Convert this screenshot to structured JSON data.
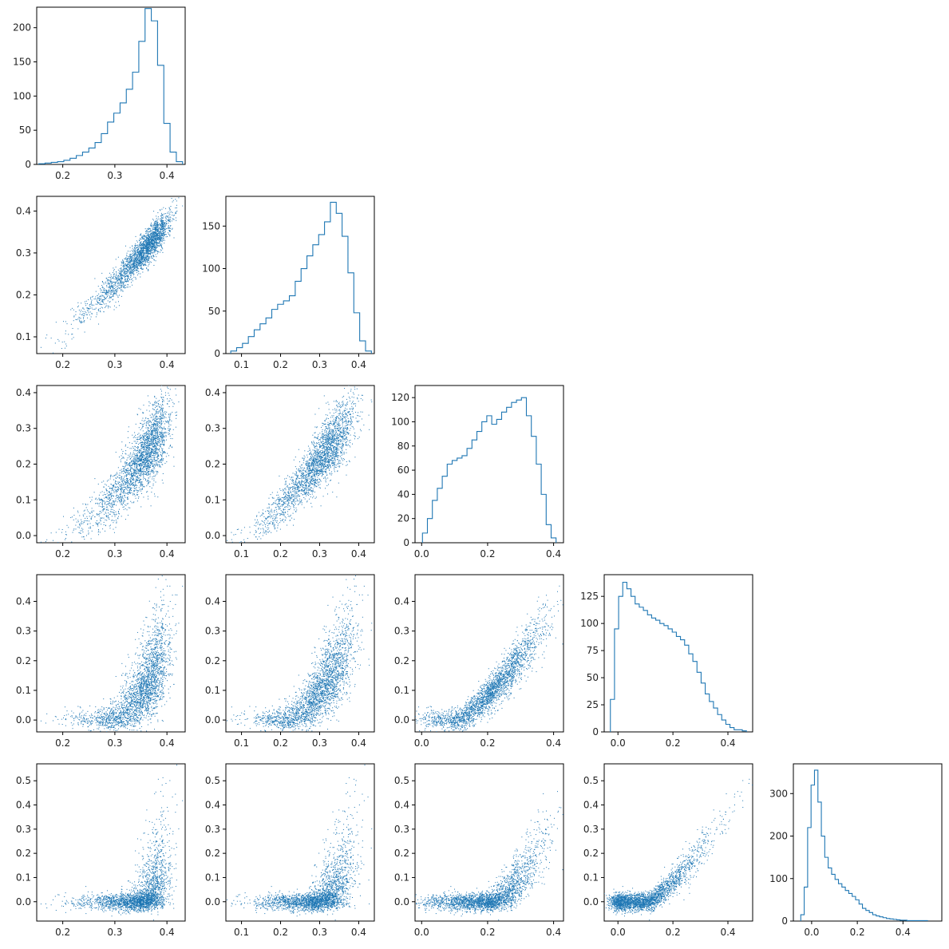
{
  "chart_data": {
    "type": "corner",
    "color": "#1f77b4",
    "background": "#ffffff",
    "grid": false,
    "legend": "none",
    "n_samples": 5000,
    "dimensions": 5,
    "marginals": [
      {
        "type": "histogram",
        "xlim": [
          0.15,
          0.435
        ],
        "ylim": [
          0,
          230
        ],
        "xticks": [
          0.2,
          0.3,
          0.4
        ],
        "xtick_labels": [
          "0.2",
          "0.3",
          "0.4"
        ],
        "yticks": [
          0,
          50,
          100,
          150,
          200
        ],
        "ytick_labels": [
          "0",
          "50",
          "100",
          "150",
          "200"
        ],
        "bins": [
          [
            0.16,
            1
          ],
          [
            0.172,
            2
          ],
          [
            0.184,
            3
          ],
          [
            0.196,
            4
          ],
          [
            0.208,
            6
          ],
          [
            0.22,
            9
          ],
          [
            0.232,
            13
          ],
          [
            0.244,
            18
          ],
          [
            0.256,
            24
          ],
          [
            0.268,
            32
          ],
          [
            0.28,
            45
          ],
          [
            0.292,
            62
          ],
          [
            0.304,
            75
          ],
          [
            0.316,
            90
          ],
          [
            0.328,
            110
          ],
          [
            0.34,
            135
          ],
          [
            0.352,
            180
          ],
          [
            0.364,
            228
          ],
          [
            0.376,
            210
          ],
          [
            0.388,
            145
          ],
          [
            0.4,
            60
          ],
          [
            0.412,
            18
          ],
          [
            0.424,
            4
          ]
        ]
      },
      {
        "type": "histogram",
        "xlim": [
          0.06,
          0.44
        ],
        "ylim": [
          0,
          185
        ],
        "xticks": [
          0.1,
          0.2,
          0.3,
          0.4
        ],
        "xtick_labels": [
          "0.1",
          "0.2",
          "0.3",
          "0.4"
        ],
        "yticks": [
          0,
          50,
          100,
          150
        ],
        "ytick_labels": [
          "0",
          "50",
          "100",
          "150"
        ],
        "bins": [
          [
            0.08,
            3
          ],
          [
            0.095,
            7
          ],
          [
            0.11,
            12
          ],
          [
            0.125,
            20
          ],
          [
            0.14,
            28
          ],
          [
            0.155,
            35
          ],
          [
            0.17,
            42
          ],
          [
            0.185,
            52
          ],
          [
            0.2,
            58
          ],
          [
            0.215,
            62
          ],
          [
            0.23,
            68
          ],
          [
            0.245,
            85
          ],
          [
            0.26,
            100
          ],
          [
            0.275,
            115
          ],
          [
            0.29,
            128
          ],
          [
            0.305,
            140
          ],
          [
            0.32,
            155
          ],
          [
            0.335,
            178
          ],
          [
            0.35,
            165
          ],
          [
            0.365,
            138
          ],
          [
            0.38,
            95
          ],
          [
            0.395,
            48
          ],
          [
            0.41,
            15
          ],
          [
            0.425,
            3
          ]
        ]
      },
      {
        "type": "histogram",
        "xlim": [
          -0.02,
          0.43
        ],
        "ylim": [
          0,
          130
        ],
        "xticks": [
          0.0,
          0.2,
          0.4
        ],
        "xtick_labels": [
          "0.0",
          "0.2",
          "0.4"
        ],
        "yticks": [
          0,
          20,
          40,
          60,
          80,
          100,
          120
        ],
        "ytick_labels": [
          "0",
          "20",
          "40",
          "60",
          "80",
          "100",
          "120"
        ],
        "bins": [
          [
            0.01,
            8
          ],
          [
            0.025,
            20
          ],
          [
            0.04,
            35
          ],
          [
            0.055,
            45
          ],
          [
            0.07,
            55
          ],
          [
            0.085,
            65
          ],
          [
            0.1,
            68
          ],
          [
            0.115,
            70
          ],
          [
            0.13,
            72
          ],
          [
            0.145,
            78
          ],
          [
            0.16,
            85
          ],
          [
            0.175,
            92
          ],
          [
            0.19,
            100
          ],
          [
            0.205,
            105
          ],
          [
            0.22,
            98
          ],
          [
            0.235,
            102
          ],
          [
            0.25,
            108
          ],
          [
            0.265,
            112
          ],
          [
            0.28,
            116
          ],
          [
            0.295,
            118
          ],
          [
            0.31,
            120
          ],
          [
            0.325,
            105
          ],
          [
            0.34,
            88
          ],
          [
            0.355,
            65
          ],
          [
            0.37,
            40
          ],
          [
            0.385,
            15
          ],
          [
            0.4,
            4
          ]
        ]
      },
      {
        "type": "histogram",
        "xlim": [
          -0.05,
          0.49
        ],
        "ylim": [
          0,
          145
        ],
        "xticks": [
          0.0,
          0.2,
          0.4
        ],
        "xtick_labels": [
          "0.0",
          "0.2",
          "0.4"
        ],
        "yticks": [
          0,
          25,
          50,
          75,
          100,
          125
        ],
        "ytick_labels": [
          "0",
          "25",
          "50",
          "75",
          "100",
          "125"
        ],
        "bins": [
          [
            -0.02,
            30
          ],
          [
            -0.005,
            95
          ],
          [
            0.01,
            125
          ],
          [
            0.025,
            138
          ],
          [
            0.04,
            132
          ],
          [
            0.055,
            125
          ],
          [
            0.07,
            118
          ],
          [
            0.085,
            115
          ],
          [
            0.1,
            112
          ],
          [
            0.115,
            108
          ],
          [
            0.13,
            105
          ],
          [
            0.145,
            103
          ],
          [
            0.16,
            100
          ],
          [
            0.175,
            98
          ],
          [
            0.19,
            95
          ],
          [
            0.205,
            92
          ],
          [
            0.22,
            88
          ],
          [
            0.235,
            85
          ],
          [
            0.25,
            80
          ],
          [
            0.265,
            72
          ],
          [
            0.28,
            65
          ],
          [
            0.295,
            55
          ],
          [
            0.31,
            45
          ],
          [
            0.325,
            35
          ],
          [
            0.34,
            28
          ],
          [
            0.355,
            22
          ],
          [
            0.37,
            16
          ],
          [
            0.385,
            11
          ],
          [
            0.4,
            7
          ],
          [
            0.415,
            4
          ],
          [
            0.43,
            2
          ],
          [
            0.445,
            2
          ],
          [
            0.46,
            1
          ]
        ]
      },
      {
        "type": "histogram",
        "xlim": [
          -0.08,
          0.57
        ],
        "ylim": [
          0,
          370
        ],
        "xticks": [
          0.0,
          0.2,
          0.4
        ],
        "xtick_labels": [
          "0.0",
          "0.2",
          "0.4"
        ],
        "yticks": [
          0,
          100,
          200,
          300
        ],
        "ytick_labels": [
          "0",
          "100",
          "200",
          "300"
        ],
        "bins": [
          [
            -0.04,
            15
          ],
          [
            -0.025,
            80
          ],
          [
            -0.01,
            220
          ],
          [
            0.005,
            320
          ],
          [
            0.02,
            355
          ],
          [
            0.035,
            280
          ],
          [
            0.05,
            200
          ],
          [
            0.065,
            150
          ],
          [
            0.08,
            125
          ],
          [
            0.095,
            110
          ],
          [
            0.11,
            98
          ],
          [
            0.125,
            88
          ],
          [
            0.14,
            80
          ],
          [
            0.155,
            72
          ],
          [
            0.17,
            65
          ],
          [
            0.185,
            58
          ],
          [
            0.2,
            50
          ],
          [
            0.215,
            40
          ],
          [
            0.23,
            30
          ],
          [
            0.245,
            25
          ],
          [
            0.26,
            20
          ],
          [
            0.275,
            15
          ],
          [
            0.29,
            12
          ],
          [
            0.305,
            10
          ],
          [
            0.32,
            8
          ],
          [
            0.335,
            6
          ],
          [
            0.35,
            5
          ],
          [
            0.365,
            4
          ],
          [
            0.38,
            3
          ],
          [
            0.395,
            2
          ],
          [
            0.41,
            2
          ],
          [
            0.425,
            1
          ],
          [
            0.44,
            1
          ],
          [
            0.47,
            1
          ],
          [
            0.5,
            1
          ]
        ]
      }
    ],
    "pairs": [
      {
        "row": 1,
        "col": 0,
        "xlim": [
          0.15,
          0.435
        ],
        "ylim": [
          0.06,
          0.435
        ],
        "xticks": [
          0.2,
          0.3,
          0.4
        ],
        "xtick_labels": [
          "0.2",
          "0.3",
          "0.4"
        ],
        "yticks": [
          0.1,
          0.2,
          0.3,
          0.4
        ],
        "ytick_labels": [
          "0.1",
          "0.2",
          "0.3",
          "0.4"
        ]
      },
      {
        "row": 2,
        "col": 0,
        "xlim": [
          0.15,
          0.435
        ],
        "ylim": [
          -0.02,
          0.42
        ],
        "xticks": [
          0.2,
          0.3,
          0.4
        ],
        "xtick_labels": [
          "0.2",
          "0.3",
          "0.4"
        ],
        "yticks": [
          0.0,
          0.1,
          0.2,
          0.3,
          0.4
        ],
        "ytick_labels": [
          "0.0",
          "0.1",
          "0.2",
          "0.3",
          "0.4"
        ]
      },
      {
        "row": 2,
        "col": 1,
        "xlim": [
          0.06,
          0.44
        ],
        "ylim": [
          -0.02,
          0.42
        ],
        "xticks": [
          0.1,
          0.2,
          0.3,
          0.4
        ],
        "xtick_labels": [
          "0.1",
          "0.2",
          "0.3",
          "0.4"
        ],
        "yticks": [
          0.0,
          0.1,
          0.2,
          0.3,
          0.4
        ],
        "ytick_labels": [
          "0.0",
          "0.1",
          "0.2",
          "0.3",
          "0.4"
        ]
      },
      {
        "row": 3,
        "col": 0,
        "xlim": [
          0.15,
          0.435
        ],
        "ylim": [
          -0.04,
          0.49
        ],
        "xticks": [
          0.2,
          0.3,
          0.4
        ],
        "xtick_labels": [
          "0.2",
          "0.3",
          "0.4"
        ],
        "yticks": [
          0.0,
          0.1,
          0.2,
          0.3,
          0.4
        ],
        "ytick_labels": [
          "0.0",
          "0.1",
          "0.2",
          "0.3",
          "0.4"
        ]
      },
      {
        "row": 3,
        "col": 1,
        "xlim": [
          0.06,
          0.44
        ],
        "ylim": [
          -0.04,
          0.49
        ],
        "xticks": [
          0.1,
          0.2,
          0.3,
          0.4
        ],
        "xtick_labels": [
          "0.1",
          "0.2",
          "0.3",
          "0.4"
        ],
        "yticks": [
          0.0,
          0.1,
          0.2,
          0.3,
          0.4
        ],
        "ytick_labels": [
          "0.0",
          "0.1",
          "0.2",
          "0.3",
          "0.4"
        ]
      },
      {
        "row": 3,
        "col": 2,
        "xlim": [
          -0.02,
          0.43
        ],
        "ylim": [
          -0.04,
          0.49
        ],
        "xticks": [
          0.0,
          0.2,
          0.4
        ],
        "xtick_labels": [
          "0.0",
          "0.2",
          "0.4"
        ],
        "yticks": [
          0.0,
          0.1,
          0.2,
          0.3,
          0.4
        ],
        "ytick_labels": [
          "0.0",
          "0.1",
          "0.2",
          "0.3",
          "0.4"
        ]
      },
      {
        "row": 4,
        "col": 0,
        "xlim": [
          0.15,
          0.435
        ],
        "ylim": [
          -0.08,
          0.57
        ],
        "xticks": [
          0.2,
          0.3,
          0.4
        ],
        "xtick_labels": [
          "0.2",
          "0.3",
          "0.4"
        ],
        "yticks": [
          0.0,
          0.1,
          0.2,
          0.3,
          0.4,
          0.5
        ],
        "ytick_labels": [
          "0.0",
          "0.1",
          "0.2",
          "0.3",
          "0.4",
          "0.5"
        ]
      },
      {
        "row": 4,
        "col": 1,
        "xlim": [
          0.06,
          0.44
        ],
        "ylim": [
          -0.08,
          0.57
        ],
        "xticks": [
          0.1,
          0.2,
          0.3,
          0.4
        ],
        "xtick_labels": [
          "0.1",
          "0.2",
          "0.3",
          "0.4"
        ],
        "yticks": [
          0.0,
          0.1,
          0.2,
          0.3,
          0.4,
          0.5
        ],
        "ytick_labels": [
          "0.0",
          "0.1",
          "0.2",
          "0.3",
          "0.4",
          "0.5"
        ]
      },
      {
        "row": 4,
        "col": 2,
        "xlim": [
          -0.02,
          0.43
        ],
        "ylim": [
          -0.08,
          0.57
        ],
        "xticks": [
          0.0,
          0.2,
          0.4
        ],
        "xtick_labels": [
          "0.0",
          "0.2",
          "0.4"
        ],
        "yticks": [
          0.0,
          0.1,
          0.2,
          0.3,
          0.4,
          0.5
        ],
        "ytick_labels": [
          "0.0",
          "0.1",
          "0.2",
          "0.3",
          "0.4",
          "0.5"
        ]
      },
      {
        "row": 4,
        "col": 3,
        "xlim": [
          -0.05,
          0.49
        ],
        "ylim": [
          -0.08,
          0.57
        ],
        "xticks": [
          0.0,
          0.2,
          0.4
        ],
        "xtick_labels": [
          "0.0",
          "0.2",
          "0.4"
        ],
        "yticks": [
          0.0,
          0.1,
          0.2,
          0.3,
          0.4,
          0.5
        ],
        "ytick_labels": [
          "0.0",
          "0.1",
          "0.2",
          "0.3",
          "0.4",
          "0.5"
        ]
      }
    ]
  }
}
